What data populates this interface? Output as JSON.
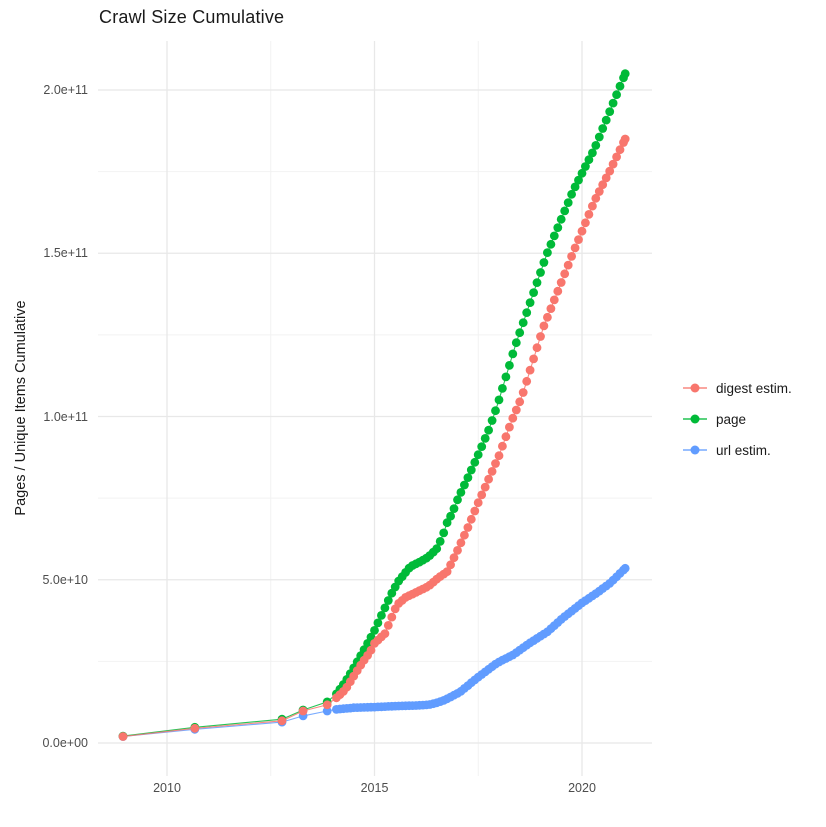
{
  "title": "Crawl Size Cumulative",
  "y_axis": {
    "label": "Pages / Unique Items Cumulative",
    "tick_labels": [
      "0.0e+00",
      "5.0e+10",
      "1.0e+11",
      "1.5e+11",
      "2.0e+11"
    ],
    "tick_values_e9": [
      0,
      50,
      100,
      150,
      200
    ],
    "minor_values_e9": [
      25,
      75,
      125,
      175
    ]
  },
  "x_axis": {
    "tick_labels": [
      "2010",
      "2015",
      "2020"
    ],
    "tick_values": [
      2010,
      2015,
      2020
    ],
    "minor_values": [
      2012.5,
      2017.5
    ]
  },
  "legend": {
    "items": [
      {
        "label": "digest estim.",
        "color": "#F8766D"
      },
      {
        "label": "page",
        "color": "#00BA38"
      },
      {
        "label": "url estim.",
        "color": "#619CFF"
      }
    ]
  },
  "chart_data": {
    "type": "line",
    "title": "Crawl Size Cumulative",
    "xlabel": "",
    "ylabel": "Pages / Unique Items Cumulative",
    "xlim": [
      2008.3,
      2021.7
    ],
    "ylim": [
      0,
      215000000000.0
    ],
    "grid": "major+minor, light gray on white",
    "legend_position": "right",
    "marker": "point",
    "point_interval": "yearly crawls 2008-2013, then monthly 2014-2021",
    "value_unit": "pages / unique items (values below in units of 1e9)",
    "monthly_dots_from": 2014.083,
    "series": [
      {
        "name": "digest estim.",
        "color": "#F8766D",
        "points": [
          [
            2008.94,
            2.0
          ],
          [
            2010.67,
            4.5
          ],
          [
            2012.77,
            6.8
          ],
          [
            2013.28,
            9.8
          ],
          [
            2013.86,
            11.7
          ],
          [
            2014.08,
            13.8
          ],
          [
            2014.3,
            16.4
          ],
          [
            2014.5,
            20.5
          ],
          [
            2014.7,
            24.5
          ],
          [
            2014.9,
            28.0
          ],
          [
            2015.0,
            30.5
          ],
          [
            2015.25,
            33.5
          ],
          [
            2015.54,
            42.3
          ],
          [
            2015.75,
            44.6
          ],
          [
            2015.98,
            46.0
          ],
          [
            2016.3,
            48.0
          ],
          [
            2016.54,
            50.6
          ],
          [
            2016.75,
            52.5
          ],
          [
            2016.87,
            55.5
          ],
          [
            2017.0,
            59.0
          ],
          [
            2017.25,
            66.0
          ],
          [
            2017.5,
            73.6
          ],
          [
            2017.75,
            80.8
          ],
          [
            2018.0,
            88.0
          ],
          [
            2018.3,
            98.5
          ],
          [
            2018.55,
            106.0
          ],
          [
            2019.06,
            127.0
          ],
          [
            2019.78,
            150.0
          ],
          [
            2020.3,
            166.0
          ],
          [
            2020.7,
            176.0
          ],
          [
            2021.04,
            185.0
          ]
        ]
      },
      {
        "name": "page",
        "color": "#00BA38",
        "points": [
          [
            2008.94,
            2.1
          ],
          [
            2010.67,
            4.8
          ],
          [
            2012.77,
            7.3
          ],
          [
            2013.28,
            10.1
          ],
          [
            2013.86,
            12.6
          ],
          [
            2014.08,
            15.0
          ],
          [
            2014.3,
            18.8
          ],
          [
            2014.5,
            23.0
          ],
          [
            2014.7,
            27.5
          ],
          [
            2014.9,
            32.0
          ],
          [
            2015.0,
            34.5
          ],
          [
            2015.2,
            40.0
          ],
          [
            2015.4,
            45.5
          ],
          [
            2015.57,
            49.4
          ],
          [
            2015.86,
            54.0
          ],
          [
            2016.1,
            55.5
          ],
          [
            2016.3,
            57.0
          ],
          [
            2016.5,
            59.5
          ],
          [
            2016.63,
            63.0
          ],
          [
            2016.75,
            67.5
          ],
          [
            2016.88,
            70.6
          ],
          [
            2017.0,
            74.5
          ],
          [
            2017.25,
            81.3
          ],
          [
            2017.5,
            88.3
          ],
          [
            2017.75,
            95.8
          ],
          [
            2017.95,
            103.0
          ],
          [
            2018.4,
            122.0
          ],
          [
            2019.16,
            150.0
          ],
          [
            2019.78,
            169.0
          ],
          [
            2020.3,
            182.0
          ],
          [
            2021.04,
            205.0
          ]
        ]
      },
      {
        "name": "url estim.",
        "color": "#619CFF",
        "points": [
          [
            2008.94,
            2.0
          ],
          [
            2010.67,
            4.2
          ],
          [
            2012.77,
            6.4
          ],
          [
            2013.28,
            8.3
          ],
          [
            2013.86,
            9.8
          ],
          [
            2014.08,
            10.3
          ],
          [
            2014.5,
            10.8
          ],
          [
            2015.0,
            11.0
          ],
          [
            2015.5,
            11.3
          ],
          [
            2016.0,
            11.5
          ],
          [
            2016.3,
            11.7
          ],
          [
            2016.5,
            12.3
          ],
          [
            2016.7,
            13.2
          ],
          [
            2017.06,
            15.6
          ],
          [
            2017.5,
            20.2
          ],
          [
            2017.95,
            24.5
          ],
          [
            2018.34,
            27.0
          ],
          [
            2018.75,
            30.7
          ],
          [
            2019.16,
            34.0
          ],
          [
            2019.54,
            38.3
          ],
          [
            2020.0,
            42.9
          ],
          [
            2020.36,
            46.0
          ],
          [
            2020.68,
            49.0
          ],
          [
            2021.04,
            53.5
          ]
        ]
      }
    ]
  }
}
